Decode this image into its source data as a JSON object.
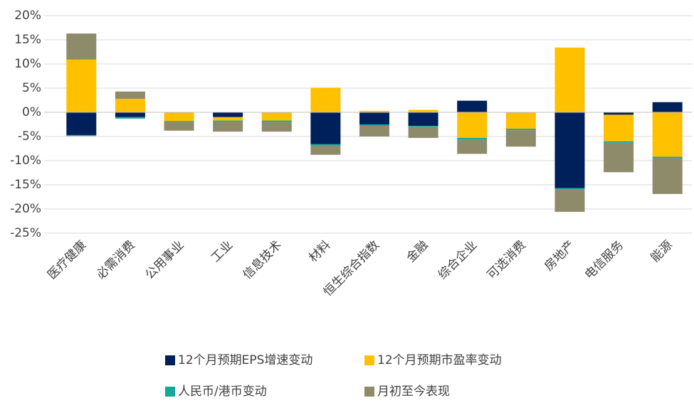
{
  "chart_data": {
    "type": "bar",
    "stacked": true,
    "categories": [
      "医疗健康",
      "必需消费",
      "公用事业",
      "工业",
      "信息技术",
      "材料",
      "恒生综合指数",
      "金融",
      "综合企业",
      "可选消费",
      "房地产",
      "电信服务",
      "能源"
    ],
    "series": [
      {
        "name": "12个月预期EPS增速变动",
        "color": "#00205b",
        "values": [
          -4.7,
          -1.0,
          -0.1,
          -1.0,
          -0.1,
          -6.6,
          -2.5,
          -2.8,
          2.4,
          -0.1,
          -15.7,
          -0.5,
          2.1
        ]
      },
      {
        "name": "12个月预期市盈率变动",
        "color": "#ffc000",
        "values": [
          10.9,
          2.8,
          -1.7,
          -0.7,
          -1.6,
          5.1,
          0.3,
          0.5,
          -5.3,
          -3.3,
          13.4,
          -5.5,
          -9.2
        ]
      },
      {
        "name": "人民币/港币变动",
        "color": "#14a79a",
        "values": [
          -0.2,
          -0.3,
          -0.2,
          -0.2,
          -0.3,
          -0.3,
          -0.3,
          -0.2,
          -0.3,
          -0.3,
          -0.3,
          -0.3,
          -0.3
        ]
      },
      {
        "name": "月初至今表现",
        "color": "#8e8b6a",
        "values": [
          5.4,
          1.5,
          -1.8,
          -2.1,
          -2.0,
          -1.9,
          -2.2,
          -2.3,
          -3.0,
          -3.4,
          -4.6,
          -6.1,
          -7.4
        ]
      }
    ],
    "ylim": [
      -25,
      20
    ],
    "yticks": [
      {
        "value": -25,
        "label": "-25%"
      },
      {
        "value": -20,
        "label": "-20%"
      },
      {
        "value": -15,
        "label": "-15%"
      },
      {
        "value": -10,
        "label": "-10%"
      },
      {
        "value": -5,
        "label": "-5%"
      },
      {
        "value": 0,
        "label": "0%"
      },
      {
        "value": 5,
        "label": "5%"
      },
      {
        "value": 10,
        "label": "10%"
      },
      {
        "value": 15,
        "label": "15%"
      },
      {
        "value": 20,
        "label": "20%"
      }
    ],
    "grid": true
  }
}
